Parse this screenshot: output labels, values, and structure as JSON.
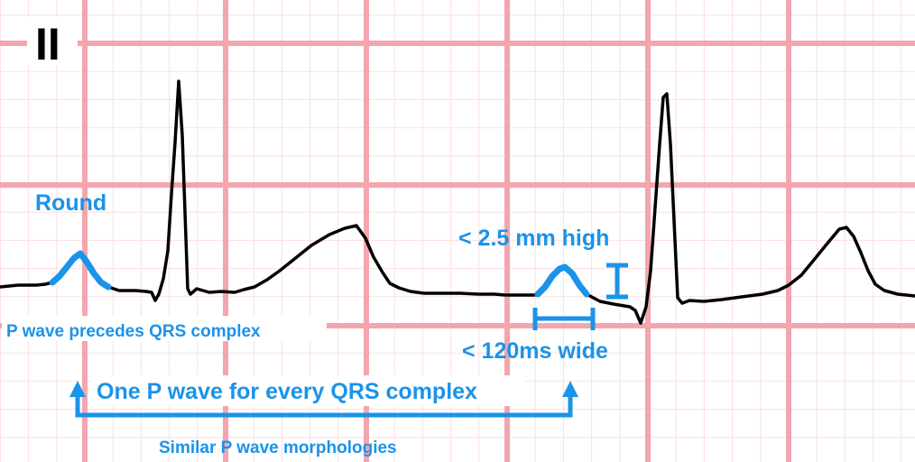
{
  "lead_label": "II",
  "annotations": {
    "round": "Round",
    "height": "< 2.5 mm high",
    "width": "< 120ms wide",
    "precedes": "P wave precedes QRS complex",
    "one_per_qrs": "One P wave for every QRS complex",
    "similar": "Similar P wave morphologies"
  },
  "colors": {
    "grid_major": "#f4a5ae",
    "grid_minor": "#fbdfe3",
    "trace": "#000000",
    "highlight": "#1a93ea",
    "lead_bg": "#ffffff"
  }
}
